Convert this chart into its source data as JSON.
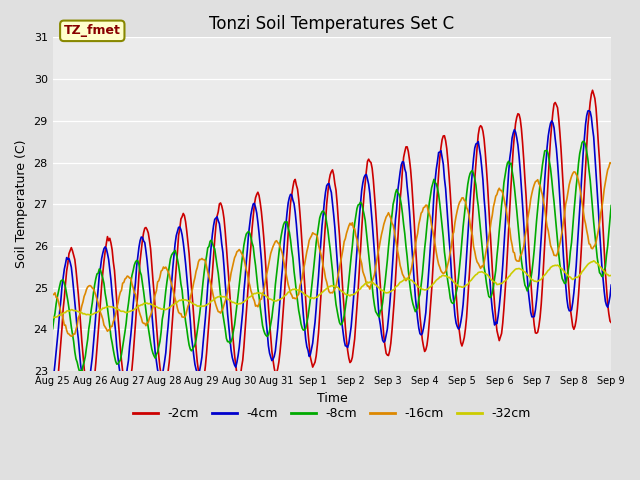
{
  "title": "Tonzi Soil Temperatures Set C",
  "xlabel": "Time",
  "ylabel": "Soil Temperature (C)",
  "ylim": [
    23.0,
    31.0
  ],
  "yticks": [
    23.0,
    24.0,
    25.0,
    26.0,
    27.0,
    28.0,
    29.0,
    30.0,
    31.0
  ],
  "xtick_labels": [
    "Aug 25",
    "Aug 26",
    "Aug 27",
    "Aug 28",
    "Aug 29",
    "Aug 30",
    "Aug 31",
    "Sep 1",
    "Sep 2",
    "Sep 3",
    "Sep 4",
    "Sep 5",
    "Sep 6",
    "Sep 7",
    "Sep 8",
    "Sep 9"
  ],
  "legend_labels": [
    "-2cm",
    "-4cm",
    "-8cm",
    "-16cm",
    "-32cm"
  ],
  "line_colors": [
    "#cc0000",
    "#0000cc",
    "#00aa00",
    "#dd8800",
    "#cccc00"
  ],
  "annotation_text": "TZ_fmet",
  "fig_bg_color": "#e0e0e0",
  "plot_bg_color": "#ebebeb",
  "grid_color": "#ffffff",
  "n_points": 480
}
